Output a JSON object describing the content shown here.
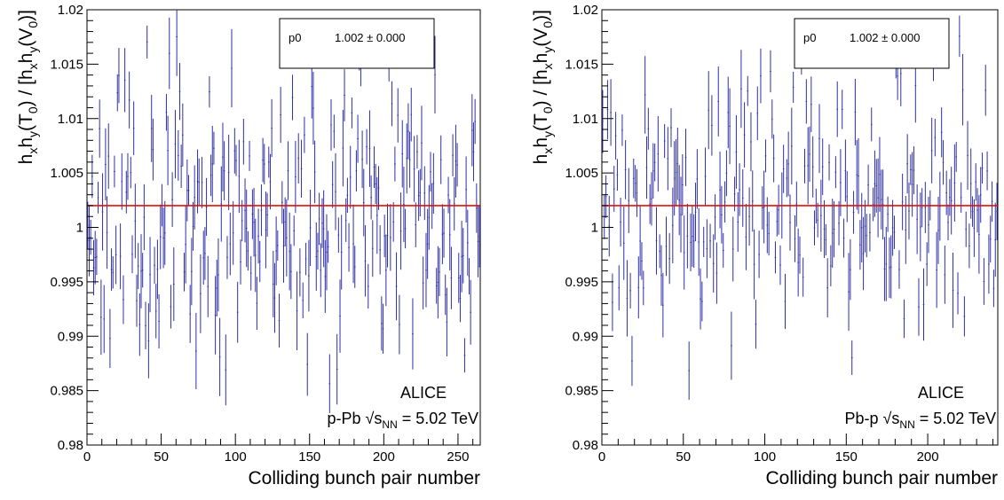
{
  "chart_data": [
    {
      "type": "scatter",
      "experiment": "ALICE",
      "system": "p-Pb",
      "energy_label": "= 5.02 TeV",
      "sqrt_sym": "√",
      "s_label": "s",
      "nn_label": "NN",
      "xlabel": "Colliding bunch pair number",
      "ylabel_parts": [
        "h",
        "x",
        "h",
        "y",
        "(T",
        "0",
        ") / [h",
        "x",
        "h",
        "y",
        "(V",
        "0",
        ")]"
      ],
      "xlim": [
        0,
        265
      ],
      "ylim": [
        0.98,
        1.02
      ],
      "x_ticks": [
        0,
        50,
        100,
        150,
        200,
        250
      ],
      "y_ticks": [
        0.98,
        0.985,
        0.99,
        0.995,
        1,
        1.005,
        1.01,
        1.015,
        1.02
      ],
      "y_tick_labels": [
        "0.98",
        "0.985",
        "0.99",
        "0.995",
        "1",
        "1.005",
        "1.01",
        "1.015",
        "1.02"
      ],
      "fit": {
        "name": "p0",
        "value": 1.002,
        "error": 0.0,
        "value_text": "1.002",
        "pm": "±",
        "error_text": "0.000"
      },
      "series": [
        {
          "color": "#2f2fa8",
          "points_count": 265,
          "mean": 1.002,
          "spread": 0.0065,
          "typical_error": 0.0025,
          "seed": 11
        }
      ],
      "fit_color": "#e01010"
    },
    {
      "type": "scatter",
      "experiment": "ALICE",
      "system": "Pb-p",
      "energy_label": "= 5.02 TeV",
      "sqrt_sym": "√",
      "s_label": "s",
      "nn_label": "NN",
      "xlabel": "Colliding bunch pair number",
      "ylabel_parts": [
        "h",
        "x",
        "h",
        "y",
        "(T",
        "0",
        ") / [h",
        "x",
        "h",
        "y",
        "(V",
        "0",
        ")]"
      ],
      "xlim": [
        0,
        243
      ],
      "ylim": [
        0.98,
        1.02
      ],
      "x_ticks": [
        0,
        50,
        100,
        150,
        200
      ],
      "y_ticks": [
        0.98,
        0.985,
        0.99,
        0.995,
        1,
        1.005,
        1.01,
        1.015,
        1.02
      ],
      "y_tick_labels": [
        "0.98",
        "0.985",
        "0.99",
        "0.995",
        "1",
        "1.005",
        "1.01",
        "1.015",
        "1.02"
      ],
      "fit": {
        "name": "p0",
        "value": 1.002,
        "error": 0.0,
        "value_text": "1.002",
        "pm": "±",
        "error_text": "0.000"
      },
      "series": [
        {
          "color": "#2f2fa8",
          "points_count": 243,
          "mean": 1.002,
          "spread": 0.0055,
          "typical_error": 0.0025,
          "seed": 29
        }
      ],
      "fit_color": "#e01010"
    }
  ]
}
